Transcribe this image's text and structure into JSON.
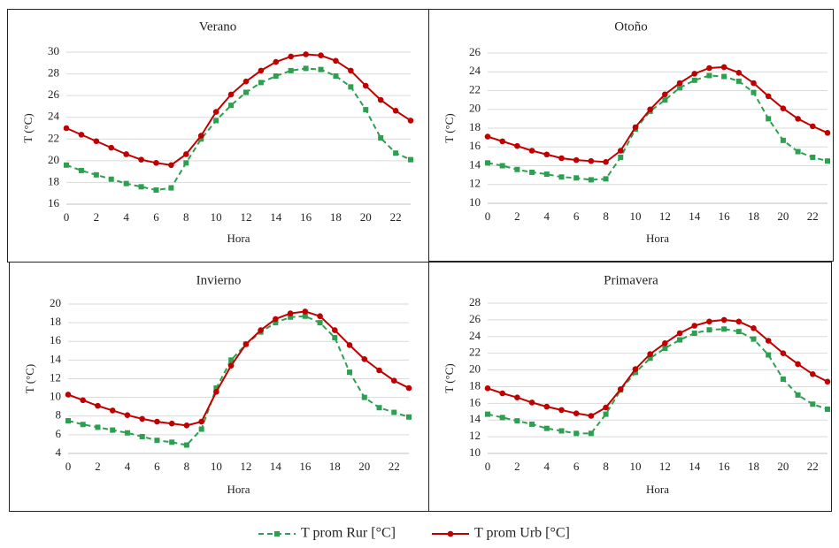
{
  "chart_data": [
    {
      "type": "line",
      "title": "Verano",
      "x_label": "Hora",
      "y_label": "T (°C)",
      "x": [
        0,
        1,
        2,
        3,
        4,
        5,
        6,
        7,
        8,
        9,
        10,
        11,
        12,
        13,
        14,
        15,
        16,
        17,
        18,
        19,
        20,
        21,
        22,
        23
      ],
      "xlim": [
        0,
        23
      ],
      "xticks": [
        0,
        2,
        4,
        6,
        8,
        10,
        12,
        14,
        16,
        18,
        20,
        22
      ],
      "ylim": [
        16,
        30
      ],
      "yticks": [
        16,
        18,
        20,
        22,
        24,
        26,
        28,
        30
      ],
      "grid": true,
      "series": [
        {
          "color": "#2ca050",
          "dashed": true,
          "marker": "square",
          "values": [
            19.6,
            19.1,
            18.7,
            18.3,
            17.9,
            17.6,
            17.3,
            17.5,
            19.8,
            22.0,
            23.7,
            25.1,
            26.3,
            27.2,
            27.8,
            28.3,
            28.5,
            28.4,
            27.8,
            26.8,
            24.7,
            22.1,
            20.7,
            20.1
          ]
        },
        {
          "color": "#c00000",
          "dashed": false,
          "marker": "circle",
          "values": [
            23.0,
            22.4,
            21.8,
            21.2,
            20.6,
            20.1,
            19.8,
            19.6,
            20.6,
            22.3,
            24.5,
            26.1,
            27.3,
            28.3,
            29.1,
            29.6,
            29.8,
            29.7,
            29.2,
            28.3,
            26.9,
            25.6,
            24.6,
            23.7
          ]
        }
      ]
    },
    {
      "type": "line",
      "title": "Otoño",
      "x_label": "Hora",
      "y_label": "T (°C)",
      "x": [
        0,
        1,
        2,
        3,
        4,
        5,
        6,
        7,
        8,
        9,
        10,
        11,
        12,
        13,
        14,
        15,
        16,
        17,
        18,
        19,
        20,
        21,
        22,
        23
      ],
      "xlim": [
        0,
        23
      ],
      "xticks": [
        0,
        2,
        4,
        6,
        8,
        10,
        12,
        14,
        16,
        18,
        20,
        22
      ],
      "ylim": [
        10,
        26
      ],
      "yticks": [
        10,
        12,
        14,
        16,
        18,
        20,
        22,
        24,
        26
      ],
      "grid": true,
      "series": [
        {
          "color": "#2ca050",
          "dashed": true,
          "marker": "square",
          "values": [
            14.3,
            14.0,
            13.6,
            13.3,
            13.1,
            12.8,
            12.7,
            12.5,
            12.6,
            14.9,
            17.9,
            19.8,
            21.0,
            22.3,
            23.1,
            23.6,
            23.5,
            23.0,
            21.8,
            19.0,
            16.7,
            15.5,
            14.9,
            14.5
          ]
        },
        {
          "color": "#c00000",
          "dashed": false,
          "marker": "circle",
          "values": [
            17.1,
            16.6,
            16.1,
            15.6,
            15.2,
            14.8,
            14.6,
            14.5,
            14.4,
            15.6,
            18.1,
            20.0,
            21.6,
            22.8,
            23.8,
            24.4,
            24.5,
            23.9,
            22.8,
            21.4,
            20.1,
            19.0,
            18.2,
            17.5
          ]
        }
      ]
    },
    {
      "type": "line",
      "title": "Invierno",
      "x_label": "Hora",
      "y_label": "T (°C)",
      "x": [
        0,
        1,
        2,
        3,
        4,
        5,
        6,
        7,
        8,
        9,
        10,
        11,
        12,
        13,
        14,
        15,
        16,
        17,
        18,
        19,
        20,
        21,
        22,
        23
      ],
      "xlim": [
        0,
        23
      ],
      "xticks": [
        0,
        2,
        4,
        6,
        8,
        10,
        12,
        14,
        16,
        18,
        20,
        22
      ],
      "ylim": [
        4,
        20
      ],
      "yticks": [
        4,
        6,
        8,
        10,
        12,
        14,
        16,
        18,
        20
      ],
      "grid": true,
      "series": [
        {
          "color": "#2ca050",
          "dashed": true,
          "marker": "square",
          "values": [
            7.5,
            7.1,
            6.8,
            6.5,
            6.2,
            5.8,
            5.4,
            5.2,
            4.9,
            6.6,
            11.0,
            14.0,
            15.7,
            17.0,
            18.0,
            18.6,
            18.7,
            18.0,
            16.4,
            12.7,
            10.0,
            8.9,
            8.4,
            7.9
          ]
        },
        {
          "color": "#c00000",
          "dashed": false,
          "marker": "circle",
          "values": [
            10.3,
            9.7,
            9.1,
            8.6,
            8.1,
            7.7,
            7.4,
            7.2,
            7.0,
            7.4,
            10.6,
            13.4,
            15.7,
            17.2,
            18.4,
            19.0,
            19.2,
            18.7,
            17.2,
            15.6,
            14.1,
            12.9,
            11.8,
            11.0
          ]
        }
      ]
    },
    {
      "type": "line",
      "title": "Primavera",
      "x_label": "Hora",
      "y_label": "T (°C)",
      "x": [
        0,
        1,
        2,
        3,
        4,
        5,
        6,
        7,
        8,
        9,
        10,
        11,
        12,
        13,
        14,
        15,
        16,
        17,
        18,
        19,
        20,
        21,
        22,
        23
      ],
      "xlim": [
        0,
        23
      ],
      "xticks": [
        0,
        2,
        4,
        6,
        8,
        10,
        12,
        14,
        16,
        18,
        20,
        22
      ],
      "ylim": [
        10,
        28
      ],
      "yticks": [
        10,
        12,
        14,
        16,
        18,
        20,
        22,
        24,
        26,
        28
      ],
      "grid": true,
      "series": [
        {
          "color": "#2ca050",
          "dashed": true,
          "marker": "square",
          "values": [
            14.7,
            14.3,
            13.9,
            13.5,
            13.0,
            12.7,
            12.4,
            12.4,
            14.7,
            17.6,
            19.7,
            21.4,
            22.6,
            23.6,
            24.4,
            24.8,
            24.9,
            24.6,
            23.7,
            21.8,
            18.9,
            17.0,
            15.9,
            15.3
          ]
        },
        {
          "color": "#c00000",
          "dashed": false,
          "marker": "circle",
          "values": [
            17.8,
            17.2,
            16.7,
            16.1,
            15.6,
            15.2,
            14.8,
            14.5,
            15.5,
            17.7,
            20.1,
            21.9,
            23.2,
            24.4,
            25.3,
            25.8,
            26.0,
            25.8,
            25.0,
            23.5,
            22.0,
            20.7,
            19.5,
            18.6
          ]
        }
      ]
    }
  ],
  "legend": {
    "position": "bottom",
    "names": [
      "T prom Rur [°C]",
      "T prom Urb [°C]"
    ]
  }
}
